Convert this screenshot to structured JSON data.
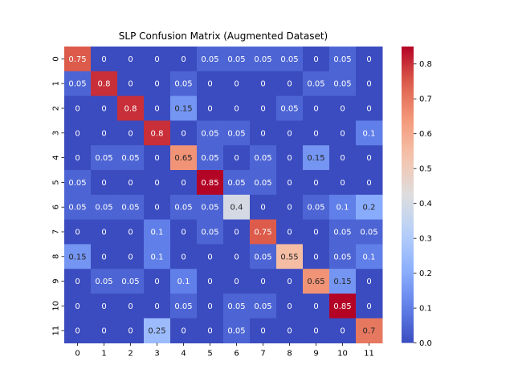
{
  "chart_data": {
    "type": "heatmap",
    "title": "SLP Confusion Matrix (Augmented Dataset)",
    "xlabel": "",
    "ylabel": "",
    "x_labels": [
      "0",
      "1",
      "2",
      "3",
      "4",
      "5",
      "6",
      "7",
      "8",
      "9",
      "10",
      "11"
    ],
    "y_labels": [
      "0",
      "1",
      "2",
      "3",
      "4",
      "5",
      "6",
      "7",
      "8",
      "9",
      "10",
      "11"
    ],
    "values": [
      [
        0.75,
        0,
        0,
        0,
        0,
        0.05,
        0.05,
        0.05,
        0.05,
        0,
        0.05,
        0
      ],
      [
        0.05,
        0.8,
        0,
        0,
        0.05,
        0,
        0,
        0,
        0,
        0.05,
        0.05,
        0
      ],
      [
        0,
        0,
        0.8,
        0,
        0.15,
        0,
        0,
        0,
        0.05,
        0,
        0,
        0
      ],
      [
        0,
        0,
        0,
        0.8,
        0,
        0.05,
        0.05,
        0,
        0,
        0,
        0,
        0.1
      ],
      [
        0,
        0.05,
        0.05,
        0,
        0.65,
        0.05,
        0,
        0.05,
        0,
        0.15,
        0,
        0
      ],
      [
        0.05,
        0,
        0,
        0,
        0,
        0.85,
        0.05,
        0.05,
        0,
        0,
        0,
        0
      ],
      [
        0.05,
        0.05,
        0.05,
        0,
        0.05,
        0.05,
        0.4,
        0,
        0,
        0.05,
        0.1,
        0.2
      ],
      [
        0,
        0,
        0,
        0.1,
        0,
        0.05,
        0,
        0.75,
        0,
        0,
        0.05,
        0.05
      ],
      [
        0.15,
        0,
        0,
        0.1,
        0,
        0,
        0,
        0.05,
        0.55,
        0,
        0.05,
        0.1
      ],
      [
        0,
        0.05,
        0.05,
        0,
        0.1,
        0,
        0,
        0,
        0,
        0.65,
        0.15,
        0
      ],
      [
        0,
        0,
        0,
        0,
        0.05,
        0,
        0.05,
        0.05,
        0,
        0,
        0.85,
        0
      ],
      [
        0,
        0,
        0,
        0.25,
        0,
        0,
        0.05,
        0,
        0,
        0,
        0,
        0.7
      ]
    ],
    "vmin": 0,
    "vmax": 0.85,
    "colormap": "coolwarm",
    "colorbar_ticks": [
      "0.0",
      "0.1",
      "0.2",
      "0.3",
      "0.4",
      "0.5",
      "0.6",
      "0.7",
      "0.8"
    ],
    "colorbar_tick_values": [
      0,
      0.1,
      0.2,
      0.3,
      0.4,
      0.5,
      0.6,
      0.7,
      0.8
    ],
    "legend_position": "right colorbar"
  }
}
